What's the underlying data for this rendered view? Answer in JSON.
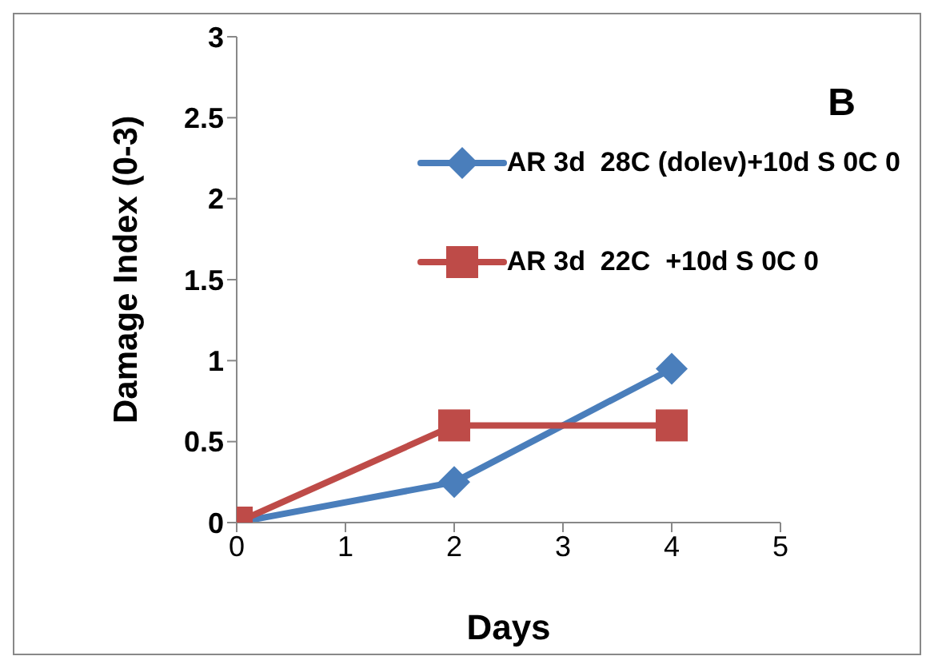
{
  "chart_data": {
    "type": "line",
    "xlabel": "Days",
    "ylabel": "Damage Index (0-3)",
    "annotations": [
      "B"
    ],
    "x": [
      0,
      2,
      4
    ],
    "series": [
      {
        "name": "AR 3d  28C (dolev)+10d S 0C 0",
        "color": "#4a7ebb",
        "values": [
          0,
          0.25,
          0.95
        ],
        "marker": "diamond"
      },
      {
        "name": "AR 3d  22C  +10d S 0C 0",
        "color": "#be4b48",
        "values": [
          0,
          0.6,
          0.6
        ],
        "marker": "square"
      }
    ],
    "xlim": [
      0,
      5
    ],
    "xticks": [
      0,
      1,
      2,
      3,
      4,
      5
    ],
    "ylim": [
      0,
      3
    ],
    "yticks": [
      0,
      0.5,
      1,
      1.5,
      2,
      2.5,
      3
    ],
    "grid": false,
    "legend": "top right",
    "line_style": "solid"
  }
}
